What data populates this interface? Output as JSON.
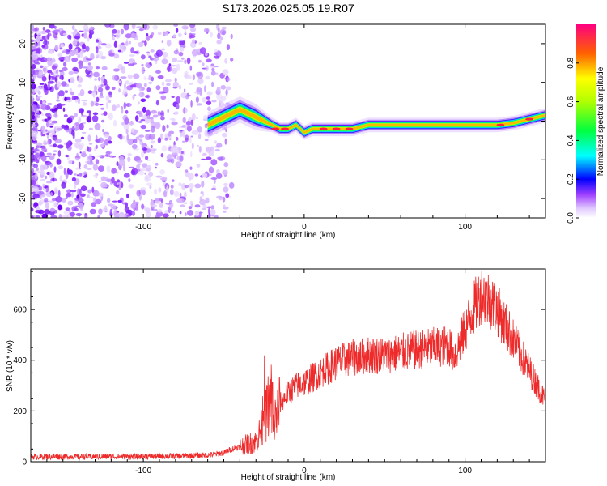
{
  "title": "S173.2026.025.05.19.R07",
  "chart_data": [
    {
      "type": "heatmap",
      "name": "spectrogram",
      "xlabel": "Height of straight line (km)",
      "ylabel": "Frequency (Hz)",
      "xlim": [
        -170,
        150
      ],
      "ylim": [
        -25,
        25
      ],
      "xticks": [
        -100,
        0,
        100
      ],
      "xtick_labels": [
        "-100",
        "0",
        "100"
      ],
      "yticks": [
        -20,
        -10,
        0,
        10,
        20
      ],
      "ytick_labels": [
        "-20",
        "-10",
        "0",
        "10",
        "20"
      ],
      "ridge": {
        "x": [
          -60,
          -50,
          -40,
          -30,
          -20,
          -15,
          -10,
          -5,
          0,
          5,
          10,
          20,
          30,
          40,
          50,
          60,
          80,
          100,
          110,
          120,
          130,
          140,
          150
        ],
        "freq": [
          -1,
          1,
          3,
          1,
          -1,
          -2,
          -2,
          -1,
          -3,
          -2,
          -2,
          -2,
          -2,
          -1,
          -1,
          -1,
          -1,
          -1,
          -1,
          -1,
          -0.5,
          0.5,
          1.5
        ]
      },
      "colorbar": {
        "label": "Normalized spectral amplitude",
        "range": [
          0,
          1
        ],
        "ticks": [
          0.0,
          0.2,
          0.4,
          0.6,
          0.8
        ],
        "tick_labels": [
          "0.0",
          "0.2",
          "0.4",
          "0.6",
          "0.8"
        ]
      }
    },
    {
      "type": "line",
      "name": "snr",
      "xlabel": "Height of straight line (km)",
      "ylabel": "SNR (10 * v/v)",
      "xlim": [
        -170,
        150
      ],
      "ylim": [
        0,
        760
      ],
      "xticks": [
        -100,
        0,
        100
      ],
      "xtick_labels": [
        "-100",
        "0",
        "100"
      ],
      "yticks": [
        0,
        200,
        400,
        600
      ],
      "ytick_labels": [
        "0",
        "200",
        "400",
        "600"
      ],
      "series": [
        {
          "name": "SNR",
          "x": [
            -170,
            -140,
            -110,
            -80,
            -60,
            -50,
            -45,
            -40,
            -35,
            -30,
            -25,
            -22,
            -20,
            -18,
            -15,
            -10,
            -5,
            0,
            10,
            20,
            30,
            40,
            50,
            60,
            70,
            80,
            90,
            93,
            95,
            100,
            105,
            110,
            115,
            120,
            125,
            130,
            135,
            140,
            145,
            150
          ],
          "values": [
            20,
            20,
            20,
            22,
            25,
            35,
            50,
            60,
            70,
            80,
            150,
            230,
            100,
            170,
            230,
            270,
            300,
            310,
            350,
            390,
            410,
            420,
            420,
            430,
            440,
            450,
            460,
            420,
            440,
            520,
            600,
            660,
            640,
            600,
            540,
            480,
            420,
            360,
            300,
            240
          ],
          "color": "#ee2a2a"
        }
      ]
    }
  ]
}
